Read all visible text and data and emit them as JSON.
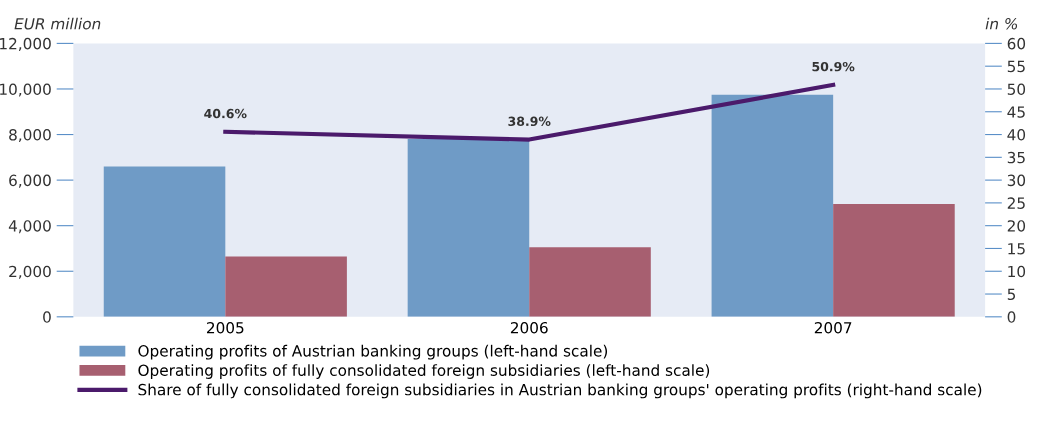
{
  "chart_data": {
    "type": "bar",
    "ylabel": "EUR million",
    "y2label": "in %",
    "categories": [
      "2005",
      "2006",
      "2007"
    ],
    "series": [
      {
        "name": "Operating profits of Austrian banking groups (left-hand scale)",
        "color": "#6f9bc6",
        "values": [
          6600,
          7800,
          9750
        ]
      },
      {
        "name": "Operating profits of fully consolidated foreign subsidiaries (left-hand scale)",
        "color": "#a75f70",
        "values": [
          2650,
          3050,
          4950
        ]
      },
      {
        "name": "Share of fully consolidated foreign subsidiaries in Austrian banking groups' operating profits (right-hand scale)",
        "type": "line",
        "axis": "y2",
        "color": "#4b1a6b",
        "values": [
          40.6,
          38.9,
          50.9
        ],
        "value_labels": [
          "40.6%",
          "38.9%",
          "50.9%"
        ],
        "marker": "none"
      }
    ],
    "ylim": [
      0,
      12000
    ],
    "yticks": [
      {
        "value": 0,
        "label": "0"
      },
      {
        "value": 2000,
        "label": "2,000"
      },
      {
        "value": 4000,
        "label": "4,000"
      },
      {
        "value": 6000,
        "label": "6,000"
      },
      {
        "value": 8000,
        "label": "8,000"
      },
      {
        "value": 10000,
        "label": "10,000"
      },
      {
        "value": 12000,
        "label": "12,000"
      }
    ],
    "y2lim": [
      0,
      60
    ],
    "y2ticks": [
      0,
      5,
      10,
      15,
      20,
      25,
      30,
      35,
      40,
      45,
      50,
      55,
      60
    ],
    "legend": "bottom left",
    "grid": false
  }
}
